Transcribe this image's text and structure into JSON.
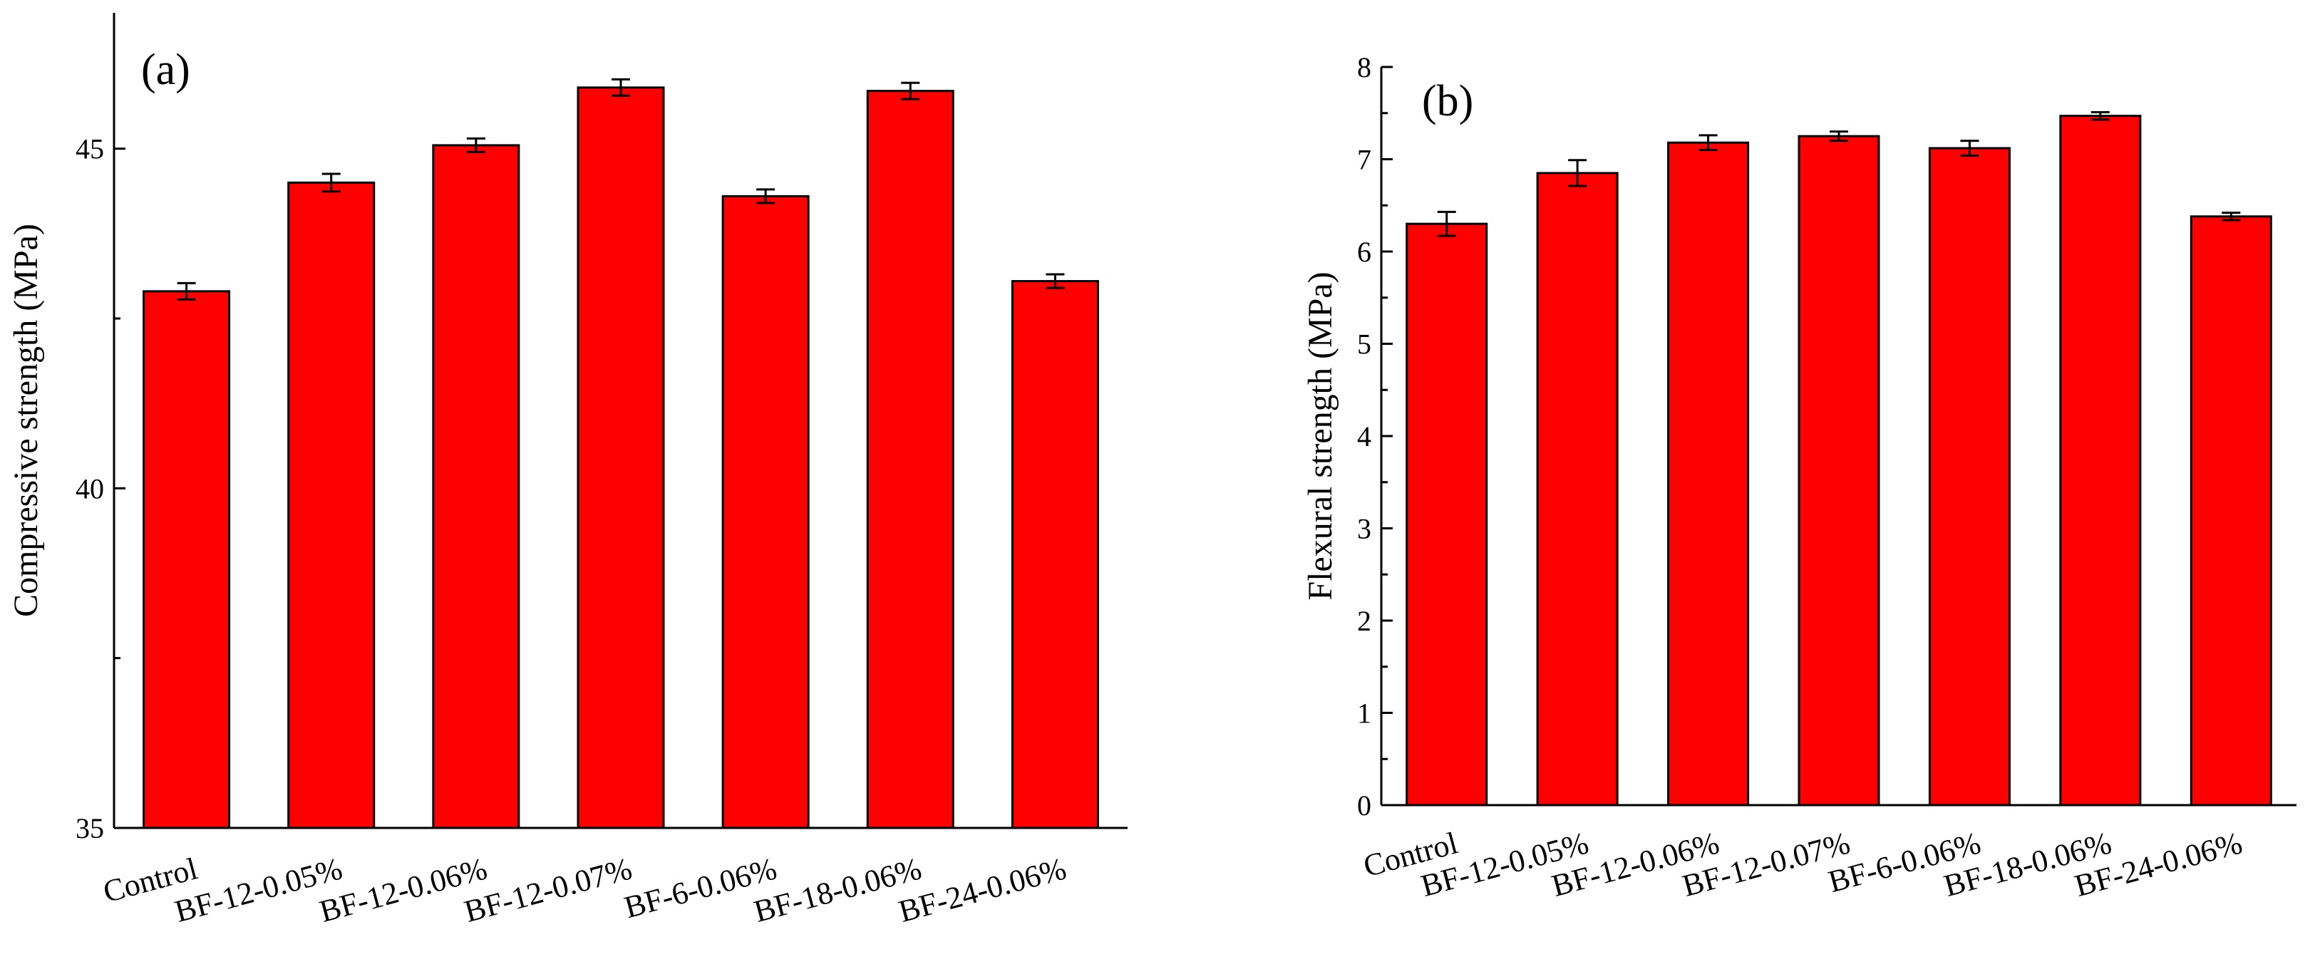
{
  "colors": {
    "bar": "#ff0000",
    "stroke": "#000000",
    "background": "#ffffff"
  },
  "chart_data": [
    {
      "type": "bar",
      "panel_label": "(a)",
      "title": "",
      "xlabel": "",
      "ylabel": "Compressive strength (MPa)",
      "ylim": [
        35,
        47
      ],
      "yticks": [
        35,
        40,
        45
      ],
      "ytick_labels": [
        "35",
        "40",
        "45"
      ],
      "minor_tick_step": 2.5,
      "grid": false,
      "categories": [
        "Control",
        "BF-12-0.05%",
        "BF-12-0.06%",
        "BF-12-0.07%",
        "BF-6-0.06%",
        "BF-18-0.06%",
        "BF-24-0.06%"
      ],
      "values": [
        42.9,
        44.5,
        45.05,
        45.9,
        44.3,
        45.85,
        43.05
      ],
      "errors": [
        0.12,
        0.13,
        0.1,
        0.12,
        0.1,
        0.12,
        0.1
      ]
    },
    {
      "type": "bar",
      "panel_label": "(b)",
      "title": "",
      "xlabel": "",
      "ylabel": "Flexural strength (MPa)",
      "ylim": [
        0,
        8
      ],
      "yticks": [
        0,
        1,
        2,
        3,
        4,
        5,
        6,
        7,
        8
      ],
      "ytick_labels": [
        "0",
        "1",
        "2",
        "3",
        "4",
        "5",
        "6",
        "7",
        "8"
      ],
      "minor_tick_step": 0.5,
      "grid": false,
      "categories": [
        "Control",
        "BF-12-0.05%",
        "BF-12-0.06%",
        "BF-12-0.07%",
        "BF-6-0.06%",
        "BF-18-0.06%",
        "BF-24-0.06%"
      ],
      "values": [
        6.3,
        6.85,
        7.18,
        7.25,
        7.12,
        7.47,
        6.38
      ],
      "errors": [
        0.13,
        0.14,
        0.08,
        0.05,
        0.08,
        0.04,
        0.04
      ]
    }
  ]
}
